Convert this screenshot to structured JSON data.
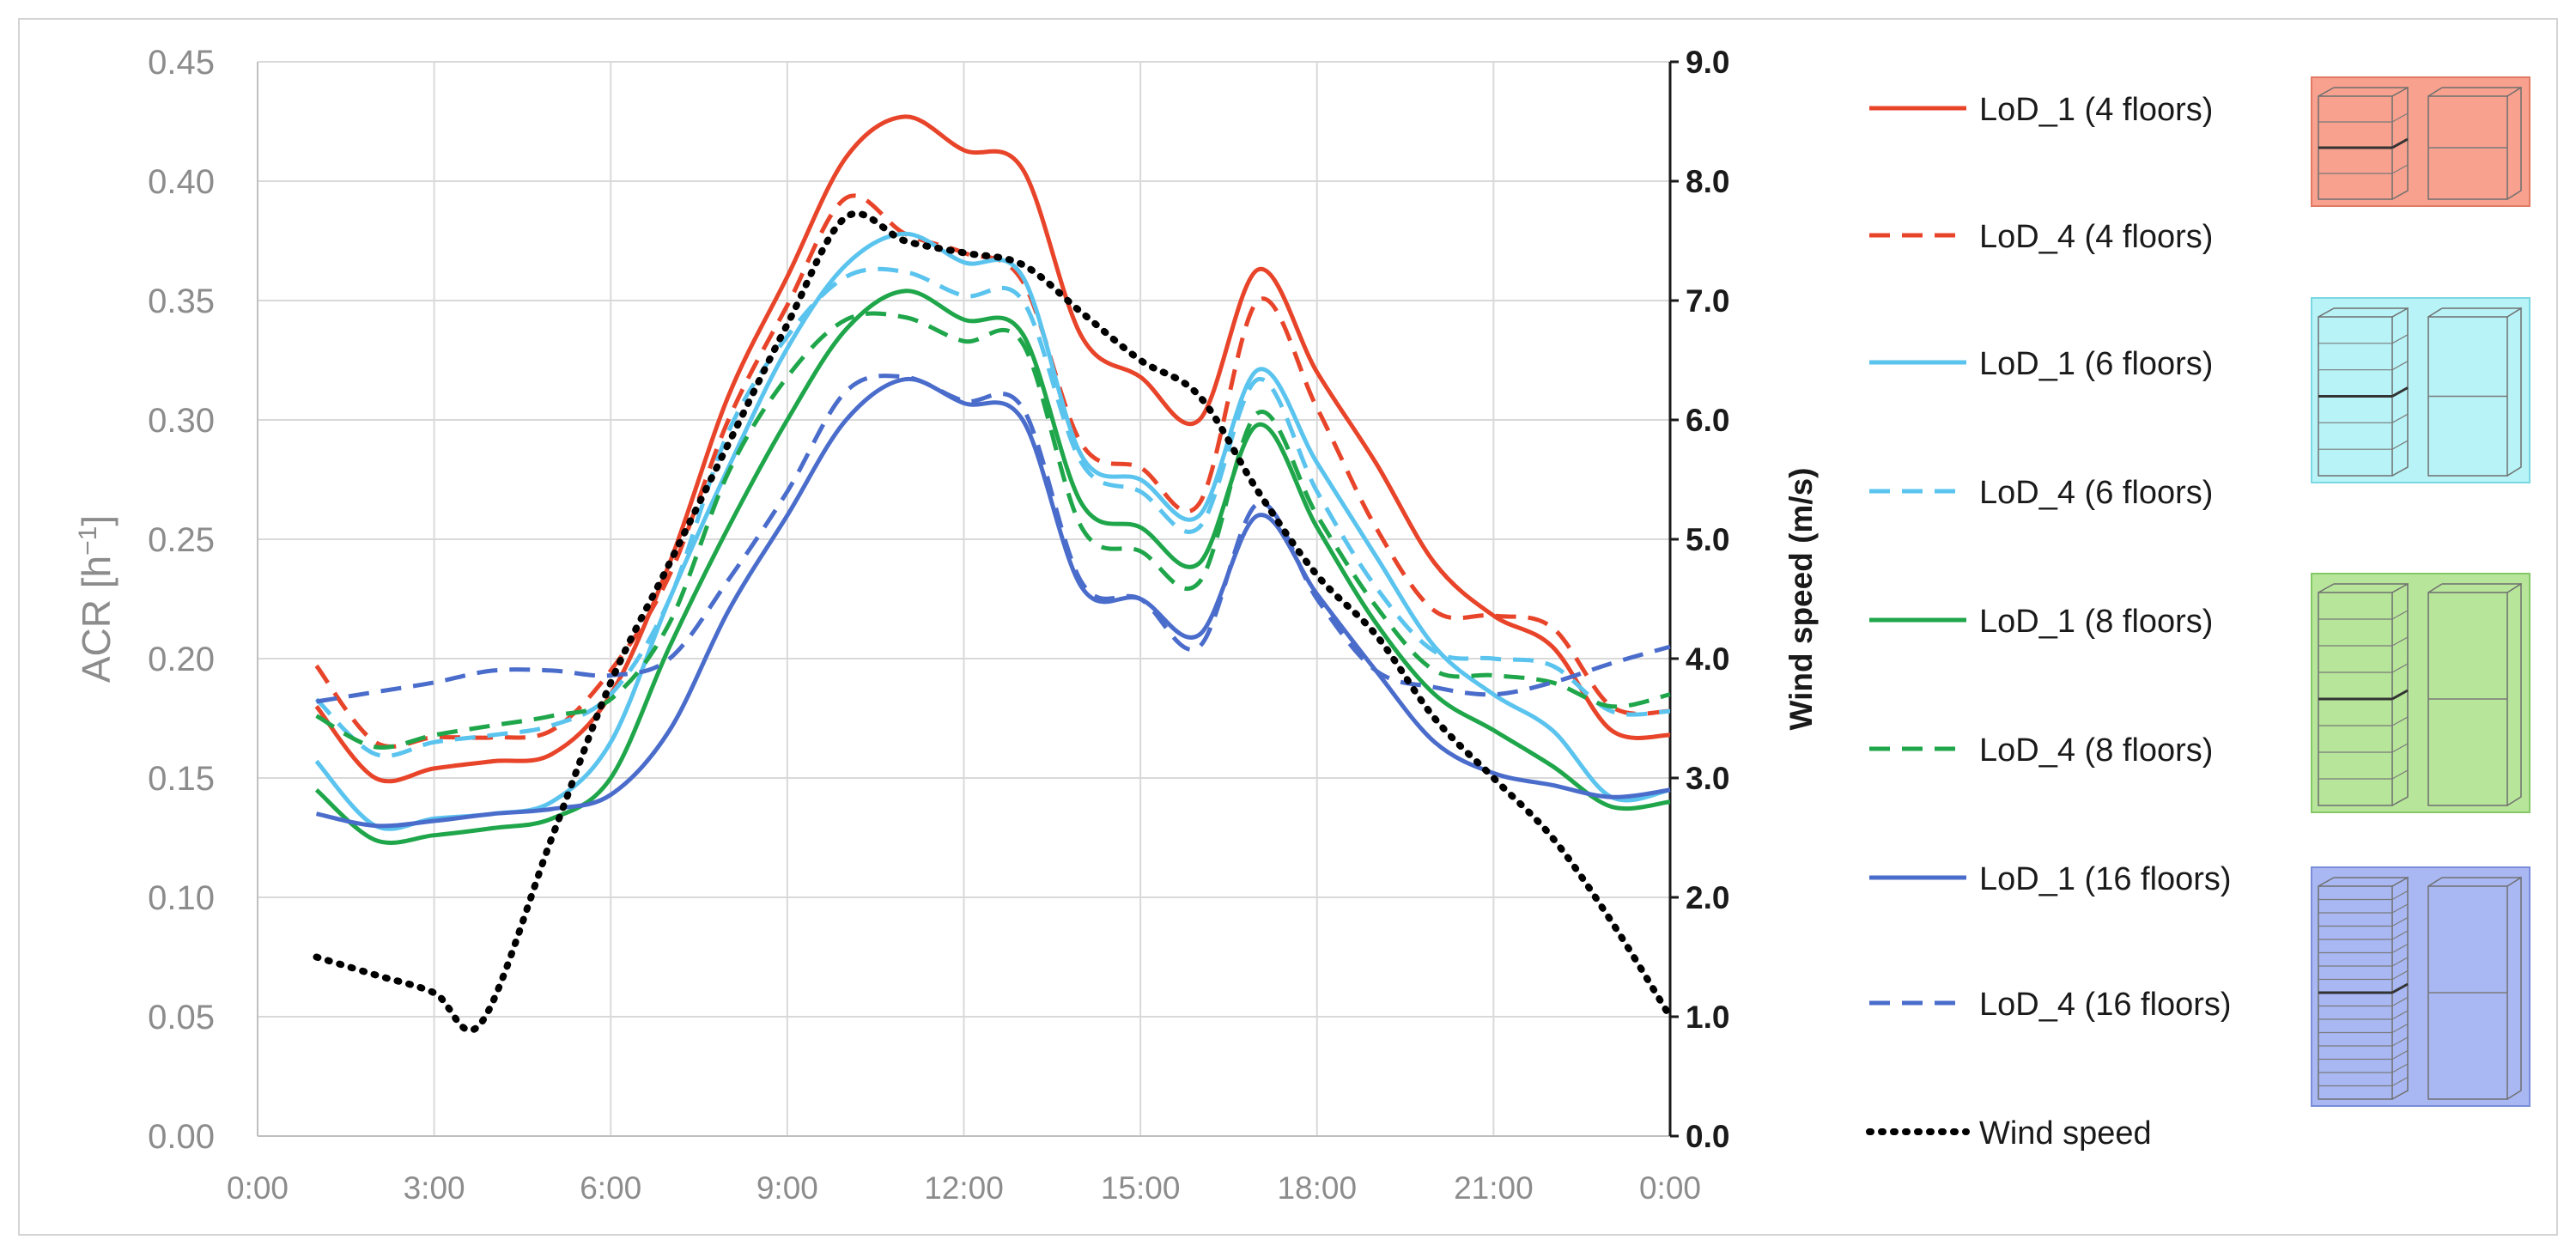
{
  "chart_data": {
    "type": "line",
    "x_ticks": [
      "0:00",
      "3:00",
      "6:00",
      "9:00",
      "12:00",
      "15:00",
      "18:00",
      "21:00",
      "0:00"
    ],
    "xlim": [
      0,
      24
    ],
    "ylabel": "ACR [h",
    "ylabel_sup": "−1",
    "ylabel_close": "]",
    "ylim": [
      0,
      0.45
    ],
    "y_ticks": [
      "0.00",
      "0.05",
      "0.10",
      "0.15",
      "0.20",
      "0.25",
      "0.30",
      "0.35",
      "0.40",
      "0.45"
    ],
    "y2label": "Wind speed (m/s)",
    "y2lim": [
      0,
      9
    ],
    "y2_ticks": [
      "0.0",
      "1.0",
      "2.0",
      "3.0",
      "4.0",
      "5.0",
      "6.0",
      "7.0",
      "8.0",
      "9.0"
    ],
    "grid": true,
    "legend_position": "right",
    "series": [
      {
        "name": "LoD_1 (4 floors)",
        "color": "#E8442A",
        "dash": "solid",
        "axis": "left",
        "x": [
          1,
          2,
          3,
          4,
          5,
          6,
          7,
          8,
          9,
          10,
          11,
          12,
          13,
          14,
          15,
          16,
          17,
          18,
          19,
          20,
          21,
          22,
          23,
          24
        ],
        "y": [
          0.18,
          0.15,
          0.154,
          0.157,
          0.16,
          0.185,
          0.24,
          0.31,
          0.36,
          0.41,
          0.427,
          0.413,
          0.405,
          0.335,
          0.318,
          0.3,
          0.363,
          0.32,
          0.282,
          0.24,
          0.218,
          0.205,
          0.17,
          0.168
        ]
      },
      {
        "name": "LoD_4 (4 floors)",
        "color": "#E8442A",
        "dash": "dashed",
        "axis": "left",
        "x": [
          1,
          2,
          3,
          4,
          5,
          6,
          7,
          8,
          9,
          10,
          11,
          12,
          13,
          14,
          15,
          16,
          17,
          18,
          19,
          20,
          21,
          22,
          23,
          24
        ],
        "y": [
          0.197,
          0.165,
          0.167,
          0.167,
          0.17,
          0.195,
          0.235,
          0.3,
          0.348,
          0.393,
          0.378,
          0.37,
          0.358,
          0.29,
          0.28,
          0.265,
          0.35,
          0.305,
          0.255,
          0.22,
          0.218,
          0.213,
          0.18,
          0.178
        ]
      },
      {
        "name": "LoD_1 (6 floors)",
        "color": "#5BC4EE",
        "dash": "solid",
        "axis": "left",
        "x": [
          1,
          2,
          3,
          4,
          5,
          6,
          7,
          8,
          9,
          10,
          11,
          12,
          13,
          14,
          15,
          16,
          17,
          18,
          19,
          20,
          21,
          22,
          23,
          24
        ],
        "y": [
          0.157,
          0.13,
          0.133,
          0.135,
          0.14,
          0.165,
          0.225,
          0.28,
          0.33,
          0.365,
          0.378,
          0.366,
          0.36,
          0.285,
          0.275,
          0.26,
          0.321,
          0.282,
          0.243,
          0.205,
          0.185,
          0.17,
          0.142,
          0.145
        ]
      },
      {
        "name": "LoD_4 (6 floors)",
        "color": "#5BC4EE",
        "dash": "dashed",
        "axis": "left",
        "x": [
          1,
          2,
          3,
          4,
          5,
          6,
          7,
          8,
          9,
          10,
          11,
          12,
          13,
          14,
          15,
          16,
          17,
          18,
          19,
          20,
          21,
          22,
          23,
          24
        ],
        "y": [
          0.183,
          0.16,
          0.165,
          0.168,
          0.172,
          0.185,
          0.225,
          0.295,
          0.335,
          0.36,
          0.362,
          0.352,
          0.35,
          0.282,
          0.27,
          0.255,
          0.317,
          0.27,
          0.23,
          0.203,
          0.2,
          0.197,
          0.178,
          0.178
        ]
      },
      {
        "name": "LoD_1 (8 floors)",
        "color": "#1FA64A",
        "dash": "solid",
        "axis": "left",
        "x": [
          1,
          2,
          3,
          4,
          5,
          6,
          7,
          8,
          9,
          10,
          11,
          12,
          13,
          14,
          15,
          16,
          17,
          18,
          19,
          20,
          21,
          22,
          23,
          24
        ],
        "y": [
          0.145,
          0.124,
          0.126,
          0.129,
          0.133,
          0.15,
          0.205,
          0.255,
          0.3,
          0.338,
          0.354,
          0.342,
          0.336,
          0.265,
          0.255,
          0.24,
          0.298,
          0.255,
          0.215,
          0.185,
          0.17,
          0.155,
          0.138,
          0.14
        ]
      },
      {
        "name": "LoD_4 (8 floors)",
        "color": "#1FA64A",
        "dash": "dashed",
        "axis": "left",
        "x": [
          1,
          2,
          3,
          4,
          5,
          6,
          7,
          8,
          9,
          10,
          11,
          12,
          13,
          14,
          15,
          16,
          17,
          18,
          19,
          20,
          21,
          22,
          23,
          24
        ],
        "y": [
          0.176,
          0.163,
          0.168,
          0.172,
          0.176,
          0.183,
          0.215,
          0.278,
          0.318,
          0.342,
          0.343,
          0.333,
          0.332,
          0.255,
          0.245,
          0.232,
          0.303,
          0.26,
          0.222,
          0.195,
          0.193,
          0.19,
          0.18,
          0.185
        ]
      },
      {
        "name": "LoD_1 (16 floors)",
        "color": "#4A6CCB",
        "dash": "solid",
        "axis": "left",
        "x": [
          1,
          2,
          3,
          4,
          5,
          6,
          7,
          8,
          9,
          10,
          11,
          12,
          13,
          14,
          15,
          16,
          17,
          18,
          19,
          20,
          21,
          22,
          23,
          24
        ],
        "y": [
          0.135,
          0.13,
          0.132,
          0.135,
          0.137,
          0.143,
          0.17,
          0.22,
          0.26,
          0.3,
          0.317,
          0.307,
          0.3,
          0.23,
          0.225,
          0.21,
          0.26,
          0.227,
          0.195,
          0.165,
          0.152,
          0.147,
          0.142,
          0.145
        ]
      },
      {
        "name": "LoD_4 (16 floors)",
        "color": "#4A6CCB",
        "dash": "dashed",
        "axis": "left",
        "x": [
          1,
          2,
          3,
          4,
          5,
          6,
          7,
          8,
          9,
          10,
          11,
          12,
          13,
          14,
          15,
          16,
          17,
          18,
          19,
          20,
          21,
          22,
          23,
          24
        ],
        "y": [
          0.182,
          0.186,
          0.19,
          0.195,
          0.195,
          0.193,
          0.2,
          0.233,
          0.27,
          0.312,
          0.318,
          0.308,
          0.305,
          0.232,
          0.225,
          0.205,
          0.265,
          0.225,
          0.195,
          0.188,
          0.185,
          0.19,
          0.198,
          0.205
        ]
      },
      {
        "name": "Wind speed",
        "color": "#000000",
        "dash": "dotted",
        "axis": "right",
        "x": [
          1,
          2,
          3,
          3.8,
          5,
          6,
          7,
          8,
          9,
          10,
          11,
          12,
          13,
          14,
          15,
          16,
          17,
          18,
          19,
          20,
          21,
          22,
          23,
          24
        ],
        "y": [
          1.5,
          1.35,
          1.2,
          0.95,
          2.5,
          3.8,
          4.8,
          5.8,
          6.8,
          7.7,
          7.5,
          7.4,
          7.3,
          6.9,
          6.5,
          6.2,
          5.4,
          4.7,
          4.2,
          3.5,
          3.0,
          2.5,
          1.8,
          1.0
        ]
      }
    ]
  }
}
